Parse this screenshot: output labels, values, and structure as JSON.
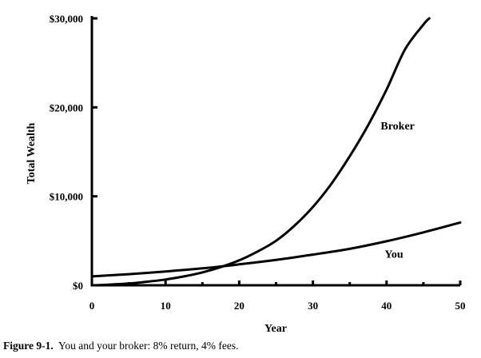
{
  "chart_data": {
    "type": "line",
    "xlabel": "Year",
    "ylabel": "Total Wealth",
    "xlim": [
      0,
      50
    ],
    "ylim": [
      0,
      30000
    ],
    "x_ticks": [
      0,
      10,
      20,
      30,
      40,
      50
    ],
    "x_tick_labels": [
      "0",
      "10",
      "20",
      "30",
      "40",
      "50"
    ],
    "x_minor_ticks": [
      5,
      15,
      25,
      35,
      45
    ],
    "y_ticks": [
      0,
      10000,
      20000,
      30000
    ],
    "y_tick_labels": [
      "$0",
      "$10,000",
      "$20,000",
      "$30,000"
    ],
    "grid": false,
    "legend": "none",
    "series": [
      {
        "name": "Broker",
        "x": [
          0,
          2.5,
          5,
          7.5,
          10,
          12.5,
          15,
          17.5,
          20,
          22.5,
          25,
          27.5,
          30,
          32.5,
          35,
          37.5,
          40,
          42.5,
          45,
          45.8
        ],
        "y": [
          0,
          80,
          200,
          400,
          650,
          1000,
          1450,
          2050,
          2800,
          3800,
          5000,
          6700,
          8800,
          11400,
          14500,
          18000,
          22000,
          26500,
          29300,
          30000
        ]
      },
      {
        "name": "You",
        "x": [
          0,
          5,
          10,
          15,
          20,
          25,
          30,
          35,
          40,
          45,
          50
        ],
        "y": [
          1000,
          1250,
          1550,
          1900,
          2350,
          2850,
          3450,
          4100,
          4950,
          5950,
          7050
        ]
      }
    ],
    "annotations": [
      {
        "text": "Broker",
        "x": 41.5,
        "y": 17500
      },
      {
        "text": "You",
        "x": 41,
        "y": 3100
      }
    ]
  },
  "caption": {
    "figure_number": "Figure 9-1.",
    "text": "You and your broker: 8% return, 4% fees."
  }
}
